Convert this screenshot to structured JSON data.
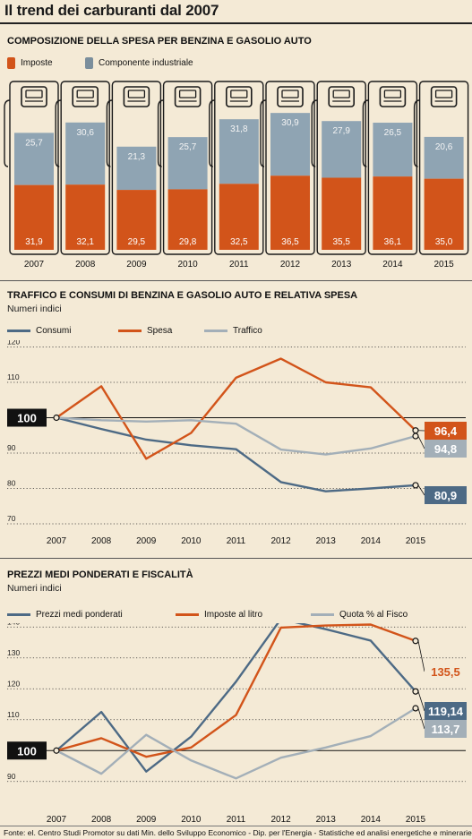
{
  "page": {
    "title": "Il trend dei carburanti dal 2007",
    "source": "Fonte: el. Centro Studi Promotor su dati Min. dello Sviluppo Economico - Dip. per l'Energia - Statistiche ed analisi energetiche e minerarie"
  },
  "colors": {
    "orange": "#d2541a",
    "grey_blue": "#8fa4b3",
    "dark_blue": "#4d6a85",
    "light_grey": "#a3afb8",
    "background": "#f4ead6"
  },
  "section1": {
    "title": "COMPOSIZIONE DELLA SPESA PER BENZINA E GASOLIO AUTO",
    "legend": [
      {
        "label": "Imposte",
        "icon": "fuel-pump-orange-icon"
      },
      {
        "label": "Componente industriale",
        "icon": "fuel-pump-grey-icon"
      }
    ]
  },
  "section2": {
    "title": "TRAFFICO E CONSUMI DI BENZINA E GASOLIO AUTO E RELATIVA SPESA",
    "subtitle": "Numeri indici",
    "legend": [
      "Consumi",
      "Spesa",
      "Traffico"
    ],
    "baseline_label": "100"
  },
  "section3": {
    "title": "PREZZI MEDI PONDERATI E FISCALITÀ",
    "subtitle": "Numeri indici",
    "legend": [
      "Prezzi medi ponderati",
      "Imposte al litro",
      "Quota % al Fisco"
    ],
    "baseline_label": "100"
  },
  "chart_data": [
    {
      "type": "bar",
      "stacked": true,
      "categories": [
        "2007",
        "2008",
        "2009",
        "2010",
        "2011",
        "2012",
        "2013",
        "2014",
        "2015"
      ],
      "series": [
        {
          "name": "Imposte",
          "color": "#d2541a",
          "values": [
            31.9,
            32.1,
            29.5,
            29.8,
            32.5,
            36.5,
            35.5,
            36.1,
            35.0
          ]
        },
        {
          "name": "Componente industriale",
          "color": "#8fa4b3",
          "values": [
            25.7,
            30.6,
            21.3,
            25.7,
            31.8,
            30.9,
            27.9,
            26.5,
            20.6
          ]
        }
      ],
      "labels": {
        "Imposte": [
          "31,9",
          "32,1",
          "29,5",
          "29,8",
          "32,5",
          "36,5",
          "35,5",
          "36,1",
          "35,0"
        ],
        "Componente industriale": [
          "25,7",
          "30,6",
          "21,3",
          "25,7",
          "31,8",
          "30,9",
          "27,9",
          "26,5",
          "20,6"
        ]
      }
    },
    {
      "type": "line",
      "x": [
        "2007",
        "2008",
        "2009",
        "2010",
        "2011",
        "2012",
        "2013",
        "2014",
        "2015"
      ],
      "ylim": [
        70,
        120
      ],
      "yticks": [
        70,
        80,
        90,
        100,
        110,
        120
      ],
      "series": [
        {
          "name": "Consumi",
          "color": "#4d6a85",
          "values": [
            100,
            96.8,
            93.8,
            92.2,
            91.1,
            81.8,
            79.2,
            80.0,
            80.9
          ],
          "end_label": "80,9"
        },
        {
          "name": "Spesa",
          "color": "#d2541a",
          "values": [
            100,
            108.9,
            88.4,
            95.7,
            111.3,
            116.7,
            110.0,
            108.6,
            96.4
          ],
          "end_label": "96,4"
        },
        {
          "name": "Traffico",
          "color": "#a3afb8",
          "values": [
            100,
            99.3,
            98.9,
            99.3,
            98.3,
            91.0,
            89.6,
            91.3,
            94.8
          ],
          "end_label": "94,8"
        }
      ]
    },
    {
      "type": "line",
      "x": [
        "2007",
        "2008",
        "2009",
        "2010",
        "2011",
        "2012",
        "2013",
        "2014",
        "2015"
      ],
      "ylim": [
        85,
        150
      ],
      "yticks": [
        90,
        100,
        110,
        120,
        130,
        140,
        150
      ],
      "series": [
        {
          "name": "Prezzi medi ponderati",
          "color": "#4d6a85",
          "values": [
            100,
            112.5,
            93.2,
            104.5,
            122.3,
            142.6,
            139.3,
            135.6,
            119.14
          ],
          "end_label": "119,14"
        },
        {
          "name": "Imposte al litro",
          "color": "#d2541a",
          "values": [
            100,
            104.0,
            98.0,
            101.0,
            111.5,
            139.8,
            140.5,
            140.8,
            135.5
          ],
          "end_label": "135,5"
        },
        {
          "name": "Quota % al Fisco",
          "color": "#a3afb8",
          "values": [
            100,
            92.5,
            105.1,
            96.8,
            91.0,
            97.7,
            101.0,
            104.7,
            113.7
          ],
          "end_label": "113,7"
        }
      ]
    }
  ]
}
